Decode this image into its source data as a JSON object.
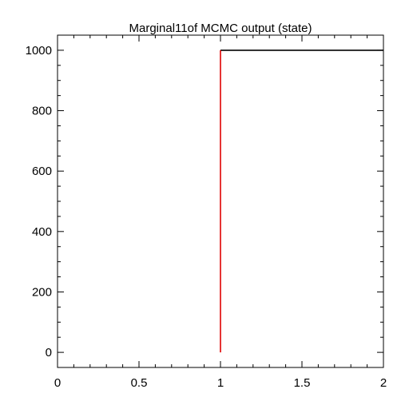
{
  "chart_data": {
    "type": "line",
    "title": "Marginal11of MCMC output (state)",
    "xlabel": "",
    "ylabel": "",
    "xlim": [
      0,
      2
    ],
    "ylim": [
      -50,
      1050
    ],
    "x_ticks": [
      0,
      0.5,
      1,
      1.5,
      2
    ],
    "x_tick_labels": [
      "0",
      "0.5",
      "1",
      "1.5",
      "2"
    ],
    "y_ticks": [
      0,
      200,
      400,
      600,
      800,
      1000
    ],
    "y_tick_labels": [
      "0",
      "200",
      "400",
      "600",
      "800",
      "1000"
    ],
    "grid": false,
    "series": [
      {
        "color": "#000000",
        "x": [
          1,
          2
        ],
        "y": [
          1000,
          1000
        ]
      },
      {
        "color": "#e00000",
        "x": [
          1,
          1
        ],
        "y": [
          0,
          1000
        ]
      }
    ]
  }
}
